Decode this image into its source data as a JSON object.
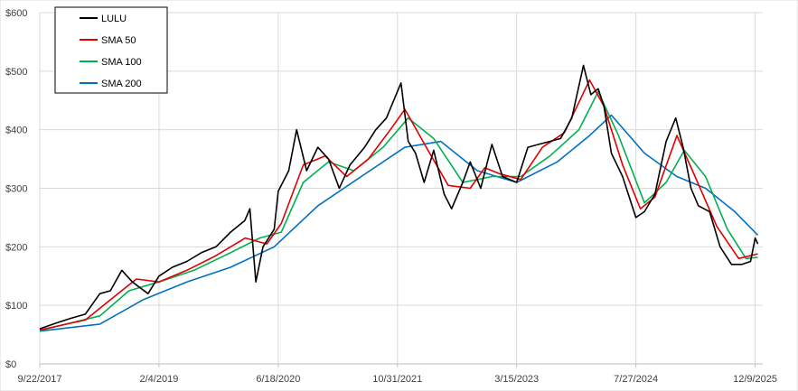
{
  "chart_data": {
    "type": "line",
    "title": "",
    "xlabel": "",
    "ylabel": "",
    "ylim": [
      0,
      600
    ],
    "xlim": [
      "2017-09-22",
      "2026-01-10"
    ],
    "y_ticks": [
      0,
      100,
      200,
      300,
      400,
      500,
      600
    ],
    "y_tick_labels": [
      "$0",
      "$100",
      "$200",
      "$300",
      "$400",
      "$500",
      "$600"
    ],
    "x_ticks": [
      "2017-09-22",
      "2019-02-04",
      "2020-06-18",
      "2021-10-31",
      "2023-03-15",
      "2024-07-27",
      "2025-12-09"
    ],
    "x_tick_labels": [
      "9/22/2017",
      "2/4/2019",
      "6/18/2020",
      "10/31/2021",
      "3/15/2023",
      "7/27/2024",
      "12/9/2025"
    ],
    "grid": "horizontal and vertical",
    "legend_position": "top-left",
    "series": [
      {
        "name": "LULU",
        "color": "#000000",
        "points": [
          [
            "2017-09-22",
            60
          ],
          [
            "2017-12-01",
            70
          ],
          [
            "2018-02-01",
            78
          ],
          [
            "2018-04-01",
            85
          ],
          [
            "2018-06-01",
            120
          ],
          [
            "2018-07-15",
            125
          ],
          [
            "2018-09-01",
            160
          ],
          [
            "2018-10-15",
            140
          ],
          [
            "2018-12-20",
            120
          ],
          [
            "2019-02-04",
            150
          ],
          [
            "2019-04-01",
            165
          ],
          [
            "2019-06-01",
            175
          ],
          [
            "2019-08-01",
            190
          ],
          [
            "2019-10-01",
            200
          ],
          [
            "2019-12-01",
            225
          ],
          [
            "2020-01-30",
            245
          ],
          [
            "2020-02-20",
            265
          ],
          [
            "2020-03-16",
            140
          ],
          [
            "2020-04-15",
            200
          ],
          [
            "2020-06-01",
            230
          ],
          [
            "2020-06-18",
            295
          ],
          [
            "2020-08-01",
            330
          ],
          [
            "2020-09-03",
            400
          ],
          [
            "2020-10-15",
            330
          ],
          [
            "2020-12-01",
            370
          ],
          [
            "2021-01-15",
            350
          ],
          [
            "2021-03-01",
            300
          ],
          [
            "2021-04-15",
            340
          ],
          [
            "2021-06-15",
            370
          ],
          [
            "2021-08-01",
            400
          ],
          [
            "2021-09-15",
            420
          ],
          [
            "2021-11-15",
            480
          ],
          [
            "2021-12-15",
            380
          ],
          [
            "2022-01-15",
            360
          ],
          [
            "2022-02-20",
            310
          ],
          [
            "2022-04-01",
            365
          ],
          [
            "2022-05-15",
            290
          ],
          [
            "2022-06-15",
            265
          ],
          [
            "2022-08-01",
            310
          ],
          [
            "2022-09-01",
            345
          ],
          [
            "2022-10-15",
            300
          ],
          [
            "2022-12-01",
            375
          ],
          [
            "2023-01-15",
            320
          ],
          [
            "2023-03-15",
            310
          ],
          [
            "2023-05-01",
            370
          ],
          [
            "2023-06-15",
            375
          ],
          [
            "2023-08-01",
            380
          ],
          [
            "2023-09-15",
            385
          ],
          [
            "2023-11-01",
            420
          ],
          [
            "2023-12-20",
            510
          ],
          [
            "2024-01-20",
            460
          ],
          [
            "2024-02-20",
            470
          ],
          [
            "2024-03-15",
            440
          ],
          [
            "2024-04-15",
            360
          ],
          [
            "2024-06-01",
            320
          ],
          [
            "2024-07-27",
            250
          ],
          [
            "2024-09-01",
            260
          ],
          [
            "2024-10-15",
            290
          ],
          [
            "2024-12-01",
            380
          ],
          [
            "2025-01-10",
            420
          ],
          [
            "2025-02-10",
            370
          ],
          [
            "2025-03-15",
            300
          ],
          [
            "2025-04-15",
            270
          ],
          [
            "2025-06-01",
            260
          ],
          [
            "2025-07-15",
            200
          ],
          [
            "2025-09-01",
            170
          ],
          [
            "2025-10-15",
            170
          ],
          [
            "2025-11-20",
            175
          ],
          [
            "2025-12-09",
            215
          ],
          [
            "2025-12-20",
            205
          ]
        ]
      },
      {
        "name": "SMA 50",
        "color": "#e00000",
        "points": [
          [
            "2017-09-22",
            58
          ],
          [
            "2018-04-01",
            75
          ],
          [
            "2018-08-01",
            115
          ],
          [
            "2018-11-01",
            145
          ],
          [
            "2019-02-04",
            140
          ],
          [
            "2019-06-01",
            160
          ],
          [
            "2019-10-01",
            185
          ],
          [
            "2020-02-01",
            215
          ],
          [
            "2020-05-01",
            205
          ],
          [
            "2020-07-01",
            240
          ],
          [
            "2020-10-01",
            340
          ],
          [
            "2021-01-01",
            355
          ],
          [
            "2021-04-01",
            320
          ],
          [
            "2021-07-01",
            350
          ],
          [
            "2021-10-01",
            400
          ],
          [
            "2021-12-01",
            435
          ],
          [
            "2022-03-01",
            370
          ],
          [
            "2022-06-01",
            305
          ],
          [
            "2022-09-01",
            300
          ],
          [
            "2022-11-01",
            335
          ],
          [
            "2023-01-01",
            325
          ],
          [
            "2023-04-01",
            315
          ],
          [
            "2023-07-01",
            370
          ],
          [
            "2023-10-01",
            395
          ],
          [
            "2024-01-15",
            485
          ],
          [
            "2024-03-15",
            440
          ],
          [
            "2024-06-01",
            340
          ],
          [
            "2024-08-15",
            265
          ],
          [
            "2024-10-15",
            285
          ],
          [
            "2025-01-15",
            390
          ],
          [
            "2025-04-01",
            320
          ],
          [
            "2025-07-01",
            235
          ],
          [
            "2025-10-01",
            180
          ],
          [
            "2025-12-20",
            188
          ]
        ]
      },
      {
        "name": "SMA 100",
        "color": "#00b050",
        "points": [
          [
            "2017-09-22",
            57
          ],
          [
            "2018-06-01",
            82
          ],
          [
            "2018-10-01",
            125
          ],
          [
            "2019-02-04",
            140
          ],
          [
            "2019-07-01",
            160
          ],
          [
            "2019-12-01",
            190
          ],
          [
            "2020-04-01",
            215
          ],
          [
            "2020-07-01",
            225
          ],
          [
            "2020-10-01",
            310
          ],
          [
            "2021-01-15",
            345
          ],
          [
            "2021-05-01",
            330
          ],
          [
            "2021-09-01",
            370
          ],
          [
            "2021-12-15",
            420
          ],
          [
            "2022-04-01",
            385
          ],
          [
            "2022-08-01",
            310
          ],
          [
            "2022-12-01",
            320
          ],
          [
            "2023-04-01",
            320
          ],
          [
            "2023-08-01",
            355
          ],
          [
            "2023-12-01",
            400
          ],
          [
            "2024-02-20",
            465
          ],
          [
            "2024-05-15",
            390
          ],
          [
            "2024-09-01",
            275
          ],
          [
            "2024-12-01",
            310
          ],
          [
            "2025-02-15",
            365
          ],
          [
            "2025-05-15",
            320
          ],
          [
            "2025-08-15",
            230
          ],
          [
            "2025-11-01",
            180
          ],
          [
            "2025-12-20",
            182
          ]
        ]
      },
      {
        "name": "SMA 200",
        "color": "#0070c0",
        "points": [
          [
            "2017-09-22",
            56
          ],
          [
            "2018-06-01",
            68
          ],
          [
            "2018-12-01",
            110
          ],
          [
            "2019-06-01",
            140
          ],
          [
            "2019-12-01",
            165
          ],
          [
            "2020-06-01",
            200
          ],
          [
            "2020-12-01",
            270
          ],
          [
            "2021-06-01",
            320
          ],
          [
            "2021-12-01",
            370
          ],
          [
            "2022-05-01",
            380
          ],
          [
            "2022-10-01",
            330
          ],
          [
            "2023-03-15",
            310
          ],
          [
            "2023-09-01",
            345
          ],
          [
            "2024-01-15",
            390
          ],
          [
            "2024-04-15",
            425
          ],
          [
            "2024-09-01",
            360
          ],
          [
            "2025-01-15",
            320
          ],
          [
            "2025-05-15",
            300
          ],
          [
            "2025-09-15",
            260
          ],
          [
            "2025-12-20",
            220
          ]
        ]
      }
    ]
  }
}
